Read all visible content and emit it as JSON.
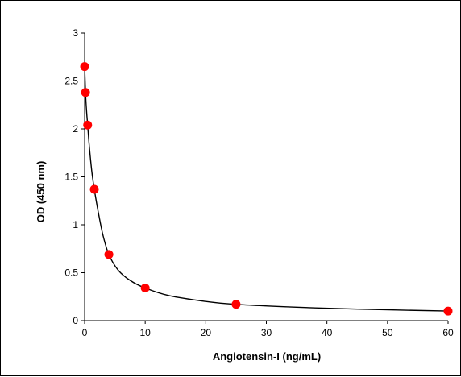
{
  "chart_data": {
    "type": "scatter",
    "title": "",
    "xlabel": "Angiotensin-I (ng/mL)",
    "ylabel": "OD (450 nm)",
    "xlim": [
      0,
      60
    ],
    "ylim": [
      0,
      3
    ],
    "x_ticks": [
      "0",
      "10",
      "20",
      "30",
      "40",
      "50",
      "60"
    ],
    "y_ticks": [
      "0",
      "0.5",
      "1",
      "1.5",
      "2",
      "2.5",
      "3"
    ],
    "grid": false,
    "legend": "none",
    "series": [
      {
        "marker_color": "#ff0000",
        "points": [
          {
            "x": 0,
            "y": 2.65
          },
          {
            "x": 0.15,
            "y": 2.38
          },
          {
            "x": 0.5,
            "y": 2.04
          },
          {
            "x": 1.6,
            "y": 1.37
          },
          {
            "x": 4,
            "y": 0.69
          },
          {
            "x": 10,
            "y": 0.34
          },
          {
            "x": 25,
            "y": 0.17
          },
          {
            "x": 60,
            "y": 0.1
          }
        ]
      }
    ],
    "fit_curve": {
      "color": "#000000",
      "points": [
        {
          "x": 0,
          "y": 2.65
        },
        {
          "x": 0.15,
          "y": 2.38
        },
        {
          "x": 0.3,
          "y": 2.2
        },
        {
          "x": 0.5,
          "y": 2.04
        },
        {
          "x": 0.8,
          "y": 1.8
        },
        {
          "x": 1.2,
          "y": 1.55
        },
        {
          "x": 1.6,
          "y": 1.37
        },
        {
          "x": 2.2,
          "y": 1.15
        },
        {
          "x": 3,
          "y": 0.9
        },
        {
          "x": 4,
          "y": 0.69
        },
        {
          "x": 5.5,
          "y": 0.53
        },
        {
          "x": 7.5,
          "y": 0.42
        },
        {
          "x": 10,
          "y": 0.34
        },
        {
          "x": 14,
          "y": 0.26
        },
        {
          "x": 20,
          "y": 0.2
        },
        {
          "x": 25,
          "y": 0.17
        },
        {
          "x": 35,
          "y": 0.14
        },
        {
          "x": 45,
          "y": 0.12
        },
        {
          "x": 60,
          "y": 0.1
        }
      ]
    }
  }
}
